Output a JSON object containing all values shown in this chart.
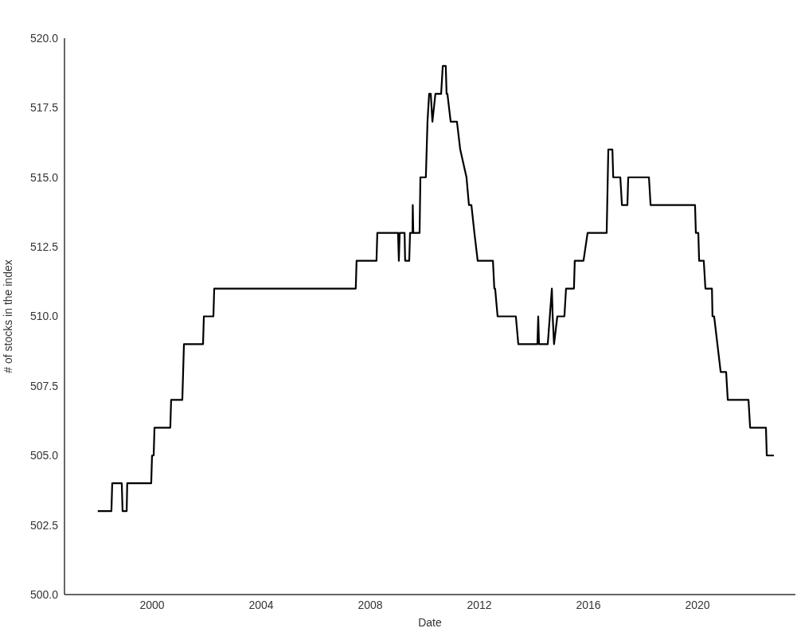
{
  "chart_data": {
    "type": "line",
    "xlabel": "Date",
    "ylabel": "# of stocks in the index",
    "xlim": [
      1996.79,
      2023.59
    ],
    "xticks": [
      2000,
      2004,
      2008,
      2012,
      2016,
      2020
    ],
    "ylim": [
      500,
      520
    ],
    "yticks": [
      {
        "value": 500,
        "label": "500.0"
      },
      {
        "value": 502.5,
        "label": "502.5"
      },
      {
        "value": 505,
        "label": "505.0"
      },
      {
        "value": 507.5,
        "label": "507.5"
      },
      {
        "value": 510,
        "label": "510.0"
      },
      {
        "value": 512.5,
        "label": "512.5"
      },
      {
        "value": 515,
        "label": "515.0"
      },
      {
        "value": 517.5,
        "label": "517.5"
      },
      {
        "value": 520,
        "label": "520.0"
      }
    ],
    "grid": false,
    "legend": false,
    "marker": "none",
    "line_style": "solid",
    "series": [
      {
        "color": "#000000",
        "x": [
          1998.01,
          1998.51,
          1998.54,
          1998.89,
          1998.92,
          1999.07,
          1999.09,
          1999.97,
          2000.0,
          2000.06,
          2000.09,
          2000.67,
          2000.7,
          2001.11,
          2001.14,
          2001.17,
          2001.87,
          2001.9,
          2002.25,
          2002.28,
          2007.47,
          2007.5,
          2008.23,
          2008.26,
          2009.02,
          2009.05,
          2009.08,
          2009.26,
          2009.28,
          2009.43,
          2009.46,
          2009.55,
          2009.56,
          2009.58,
          2009.81,
          2009.84,
          2010.04,
          2010.07,
          2010.1,
          2010.16,
          2010.22,
          2010.28,
          2010.39,
          2010.6,
          2010.66,
          2010.77,
          2010.8,
          2010.83,
          2010.95,
          2011.18,
          2011.3,
          2011.53,
          2011.62,
          2011.71,
          2011.82,
          2011.94,
          2012.5,
          2012.55,
          2012.58,
          2012.67,
          2013.34,
          2013.43,
          2014.13,
          2014.16,
          2014.19,
          2014.51,
          2014.66,
          2014.69,
          2014.74,
          2014.86,
          2015.12,
          2015.18,
          2015.47,
          2015.5,
          2015.82,
          2015.97,
          2016.67,
          2016.73,
          2016.88,
          2016.91,
          2017.17,
          2017.23,
          2017.43,
          2017.46,
          2018.22,
          2018.28,
          2019.91,
          2019.94,
          2020.03,
          2020.06,
          2020.23,
          2020.29,
          2020.53,
          2020.55,
          2020.61,
          2020.85,
          2021.05,
          2021.11,
          2021.87,
          2021.93,
          2022.51,
          2022.54,
          2022.8
        ],
        "values": [
          503,
          503,
          504,
          504,
          503,
          503,
          504,
          504,
          505,
          505,
          506,
          506,
          507,
          507,
          508,
          509,
          509,
          510,
          510,
          511,
          511,
          512,
          512,
          513,
          513,
          512,
          513,
          513,
          512,
          512,
          513,
          513,
          514,
          513,
          513,
          515,
          515,
          516,
          517,
          518,
          518,
          517,
          518,
          518,
          519,
          519,
          518,
          518,
          517,
          517,
          516,
          515,
          514,
          514,
          513,
          512,
          512,
          511,
          511,
          510,
          510,
          509,
          509,
          510,
          509,
          509,
          511,
          510,
          509,
          510,
          510,
          511,
          511,
          512,
          512,
          513,
          513,
          516,
          516,
          515,
          515,
          514,
          514,
          515,
          515,
          514,
          514,
          513,
          513,
          512,
          512,
          511,
          511,
          510,
          510,
          508,
          508,
          507,
          507,
          506,
          506,
          505,
          505
        ]
      }
    ]
  }
}
